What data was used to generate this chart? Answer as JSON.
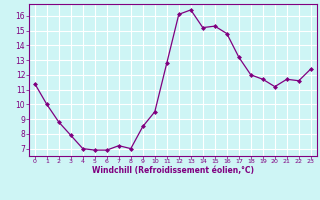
{
  "x": [
    0,
    1,
    2,
    3,
    4,
    5,
    6,
    7,
    8,
    9,
    10,
    11,
    12,
    13,
    14,
    15,
    16,
    17,
    18,
    19,
    20,
    21,
    22,
    23
  ],
  "y": [
    11.4,
    10.0,
    8.8,
    7.9,
    7.0,
    6.9,
    6.9,
    7.2,
    7.0,
    8.5,
    9.5,
    12.8,
    16.1,
    16.4,
    15.2,
    15.3,
    14.8,
    13.2,
    12.0,
    11.7,
    11.2,
    11.7,
    11.6,
    12.4
  ],
  "line_color": "#800080",
  "marker_color": "#800080",
  "bg_color": "#cef5f5",
  "grid_color": "#ffffff",
  "xlabel": "Windchill (Refroidissement éolien,°C)",
  "xlabel_color": "#800080",
  "xtick_color": "#800080",
  "ytick_color": "#800080",
  "xlim": [
    -0.5,
    23.5
  ],
  "ylim": [
    6.5,
    16.8
  ],
  "yticks": [
    7,
    8,
    9,
    10,
    11,
    12,
    13,
    14,
    15,
    16
  ],
  "xticks": [
    0,
    1,
    2,
    3,
    4,
    5,
    6,
    7,
    8,
    9,
    10,
    11,
    12,
    13,
    14,
    15,
    16,
    17,
    18,
    19,
    20,
    21,
    22,
    23
  ],
  "figsize": [
    3.2,
    2.0
  ],
  "dpi": 100
}
